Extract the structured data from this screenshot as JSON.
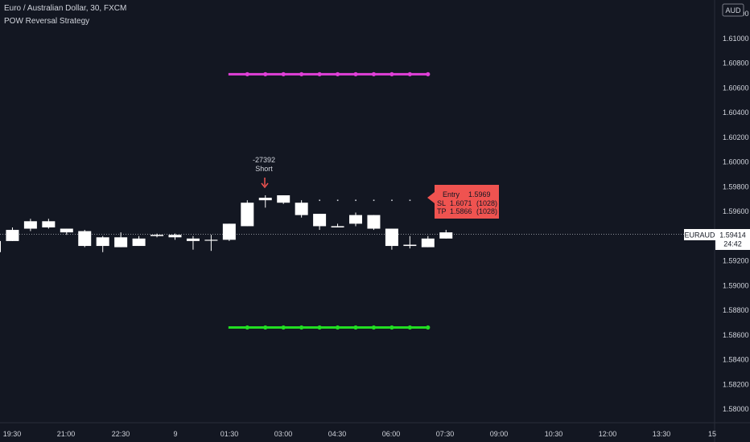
{
  "header": {
    "symbol_title": "Euro / Australian Dollar, 30, FXCM",
    "indicator_name": "POW Reversal Strategy"
  },
  "currency_badge": "AUD",
  "price_axis": {
    "ticks": [
      "1.61200",
      "1.61000",
      "1.60800",
      "1.60600",
      "1.60400",
      "1.60200",
      "1.60000",
      "1.59800",
      "1.59600",
      "1.59400",
      "1.59200",
      "1.59000",
      "1.58800",
      "1.58600",
      "1.58400",
      "1.58200",
      "1.58000"
    ]
  },
  "time_axis": {
    "ticks": [
      "19:30",
      "21:00",
      "22:30",
      "9",
      "01:30",
      "03:00",
      "04:30",
      "06:00",
      "07:30",
      "09:00",
      "10:30",
      "12:00",
      "13:30",
      "15"
    ]
  },
  "last_price": {
    "symbol": "EURAUD",
    "value": "1.59414",
    "countdown": "24:42"
  },
  "signal": {
    "value": "-27392",
    "label": "Short"
  },
  "trade_box": {
    "entry_label": "Entry",
    "entry_value": "1.5969",
    "sl_label": "SL",
    "sl_value": "1.6071",
    "sl_pips": "(1028)",
    "tp_label": "TP",
    "tp_value": "1.5866",
    "tp_pips": "(1028)"
  },
  "colors": {
    "background": "#131722",
    "candle": "#ffffff",
    "stop_loss_line": "#e040d8",
    "take_profit_line": "#22dd22",
    "trade_box": "#ef5350",
    "signal_arrow": "#ef5350",
    "axis_text": "#d1d4dc"
  },
  "chart_data": {
    "type": "candlestick",
    "candles": [
      {
        "o": 1.5936,
        "h": 1.594,
        "l": 1.592,
        "c": 1.5927
      },
      {
        "o": 1.5936,
        "h": 1.5947,
        "l": 1.5936,
        "c": 1.5945
      },
      {
        "o": 1.5946,
        "h": 1.5954,
        "l": 1.5944,
        "c": 1.5952
      },
      {
        "o": 1.5952,
        "h": 1.5954,
        "l": 1.5946,
        "c": 1.5947
      },
      {
        "o": 1.5946,
        "h": 1.5946,
        "l": 1.5941,
        "c": 1.5943
      },
      {
        "o": 1.5944,
        "h": 1.5945,
        "l": 1.5931,
        "c": 1.5932
      },
      {
        "o": 1.5939,
        "h": 1.594,
        "l": 1.5927,
        "c": 1.5932
      },
      {
        "o": 1.5931,
        "h": 1.5943,
        "l": 1.5931,
        "c": 1.5939
      },
      {
        "o": 1.5932,
        "h": 1.594,
        "l": 1.5932,
        "c": 1.5938
      },
      {
        "o": 1.594,
        "h": 1.5942,
        "l": 1.5939,
        "c": 1.5941
      },
      {
        "o": 1.5941,
        "h": 1.5942,
        "l": 1.5937,
        "c": 1.5939
      },
      {
        "o": 1.5938,
        "h": 1.594,
        "l": 1.5929,
        "c": 1.5936
      },
      {
        "o": 1.5937,
        "h": 1.5941,
        "l": 1.5928,
        "c": 1.5937
      },
      {
        "o": 1.5937,
        "h": 1.595,
        "l": 1.5936,
        "c": 1.595
      },
      {
        "o": 1.5948,
        "h": 1.5969,
        "l": 1.5948,
        "c": 1.5967
      },
      {
        "o": 1.5971,
        "h": 1.5973,
        "l": 1.5963,
        "c": 1.5969
      },
      {
        "o": 1.5973,
        "h": 1.5973,
        "l": 1.5966,
        "c": 1.5967
      },
      {
        "o": 1.5967,
        "h": 1.5969,
        "l": 1.5955,
        "c": 1.5957
      },
      {
        "o": 1.5958,
        "h": 1.5958,
        "l": 1.5945,
        "c": 1.5948
      },
      {
        "o": 1.5948,
        "h": 1.595,
        "l": 1.5947,
        "c": 1.5947
      },
      {
        "o": 1.5957,
        "h": 1.5959,
        "l": 1.5948,
        "c": 1.595
      },
      {
        "o": 1.5957,
        "h": 1.5957,
        "l": 1.5945,
        "c": 1.5946
      },
      {
        "o": 1.5946,
        "h": 1.5946,
        "l": 1.5929,
        "c": 1.5932
      },
      {
        "o": 1.5932,
        "h": 1.594,
        "l": 1.593,
        "c": 1.5933
      },
      {
        "o": 1.5931,
        "h": 1.594,
        "l": 1.5931,
        "c": 1.5938
      },
      {
        "o": 1.5938,
        "h": 1.5945,
        "l": 1.5938,
        "c": 1.5943
      }
    ],
    "stop_loss_level": 1.6071,
    "take_profit_level": 1.5866,
    "entry_level": 1.5969,
    "last_price": 1.59414,
    "ylim": [
      1.5775,
      1.613
    ]
  }
}
